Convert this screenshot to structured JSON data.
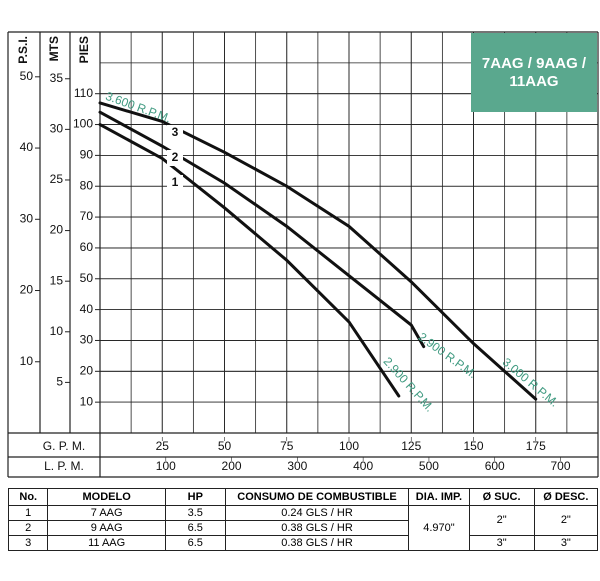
{
  "chart_data": {
    "type": "line",
    "title": "7AAG / 9AAG / 11AAG",
    "x_axes": [
      {
        "label": "G. P. M.",
        "xlim": [
          0,
          200
        ],
        "xticks": [
          25,
          50,
          75,
          100,
          125,
          150,
          175
        ]
      },
      {
        "label": "L. P. M.",
        "xlim": [
          0,
          757
        ],
        "xticks": [
          100,
          200,
          300,
          400,
          500,
          600,
          700
        ]
      }
    ],
    "y_axes": [
      {
        "label": "P.S.I.",
        "ylim": [
          0,
          56.29
        ],
        "yticks": [
          10,
          20,
          30,
          40,
          50
        ]
      },
      {
        "label": "MTS",
        "ylim": [
          0,
          39.62
        ],
        "yticks": [
          5,
          10,
          15,
          20,
          25,
          30,
          35
        ]
      },
      {
        "label": "PIES",
        "ylim": [
          0,
          130
        ],
        "yticks": [
          10,
          20,
          30,
          40,
          50,
          60,
          70,
          80,
          90,
          100,
          110
        ]
      }
    ],
    "grid": true,
    "series": [
      {
        "name": "1",
        "color": "#111111",
        "x": [
          0,
          25,
          50,
          75,
          100,
          120
        ],
        "values": [
          100,
          89,
          73,
          56,
          36,
          12
        ]
      },
      {
        "name": "2",
        "color": "#111111",
        "x": [
          0,
          25,
          50,
          75,
          100,
          125,
          130
        ],
        "values": [
          104,
          93,
          81,
          67,
          51,
          35,
          28
        ]
      },
      {
        "name": "3",
        "color": "#111111",
        "x": [
          0,
          25,
          50,
          75,
          100,
          125,
          150,
          175
        ],
        "values": [
          107,
          101,
          91,
          80,
          67,
          49,
          29,
          11
        ]
      }
    ],
    "annotations": [
      "3.600 R.P.M.",
      "2.900 R.P.M.",
      "2.900 R.P.M.",
      "3.000 R.P.M."
    ],
    "annotation_color": "#3f9a80"
  },
  "table": {
    "columns": [
      "No.",
      "MODELO",
      "HP",
      "CONSUMO DE COMBUSTIBLE",
      "DIA. IMP.",
      "Ø SUC.",
      "Ø DESC."
    ],
    "rows": [
      [
        "1",
        "7 AAG",
        "3.5",
        "0.24 GLS / HR"
      ],
      [
        "2",
        "9 AAG",
        "6.5",
        "0.38 GLS / HR"
      ],
      [
        "3",
        "11 AAG",
        "6.5",
        "0.38 GLS / HR"
      ]
    ],
    "dia_imp": "4.970\"",
    "suc": [
      "2\"",
      "3\""
    ],
    "desc": [
      "2\"",
      "3\""
    ]
  }
}
